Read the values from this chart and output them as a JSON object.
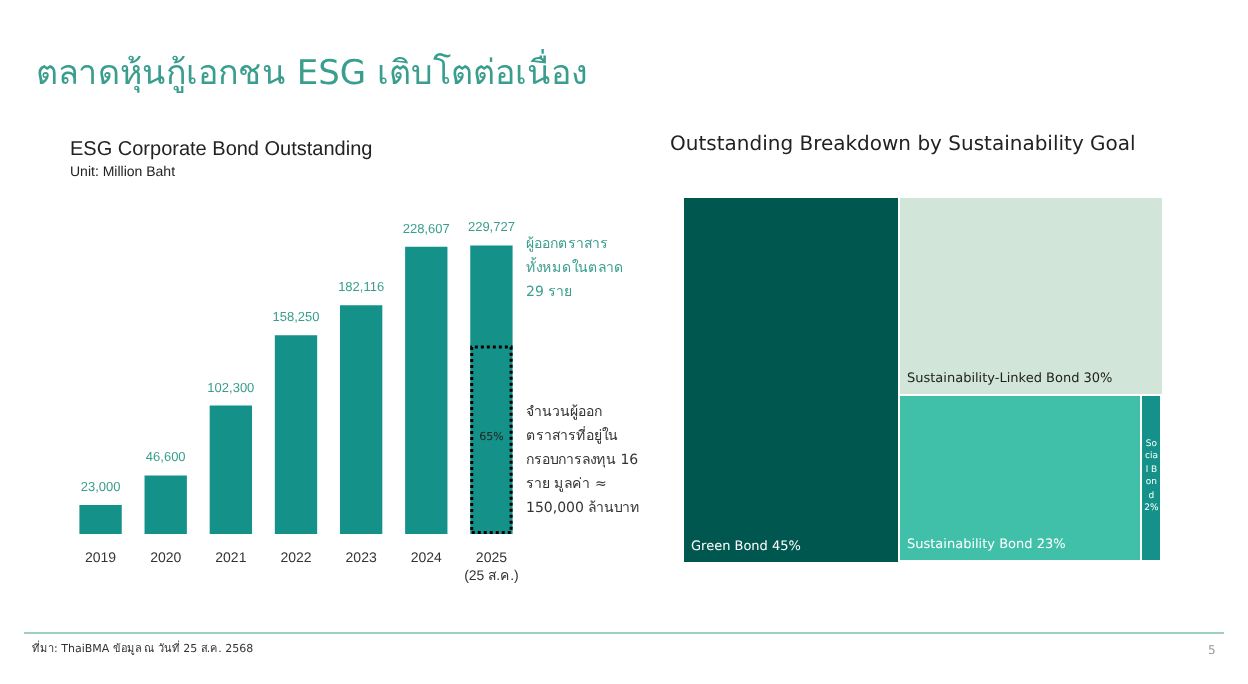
{
  "chart_data": [
    {
      "type": "bar",
      "title": "ESG Corporate Bond Outstanding",
      "subtitle": "Unit: Million Baht",
      "categories": [
        "2019",
        "2020",
        "2021",
        "2022",
        "2023",
        "2024",
        "2025\n(25 ส.ค.)"
      ],
      "series": [
        {
          "color": "#14928a",
          "values": [
            23000,
            46600,
            102300,
            158250,
            182116,
            228607,
            229727
          ],
          "value_labels": [
            "23,000",
            "46,600",
            "102,300",
            "158,250",
            "182,116",
            "228,607",
            "229,727"
          ]
        },
        {
          "color": "#14928a",
          "line_style": "dotted",
          "values": [
            null,
            null,
            null,
            null,
            null,
            null,
            150000
          ]
        }
      ],
      "tick_labels": "x",
      "annotations": [
        "ตลาดหุ้นกู้เอกชน ESG เติบโตต่อเนื่อง",
        "ผู้ออกตราสารทั้งหมดในตลาด 29 ราย",
        "จำนวนผู้ออกตราสารที่อยู่ในกรอบการลงทุน 16 ราย มูลค่า ≈ 150,000 ล้านบาท",
        "65%",
        "ที่มา: ThaiBMA ข้อมูล ณ วันที่ 25 ส.ค. 2568"
      ]
    },
    {
      "type": "other",
      "title": "Outstanding Breakdown by Sustainability Goal",
      "categories": [
        "Green Bond",
        "Sustainability-Linked Bond",
        "Sustainability Bond",
        "Social Bond"
      ],
      "values": [
        45,
        30,
        23,
        2
      ],
      "value_labels": [
        "45%",
        "30%",
        "23%",
        "2%"
      ],
      "colors": [
        "#00574f",
        "#d1e5d8",
        "#41c0a9",
        "#14928a"
      ],
      "annotations": [
        "5"
      ]
    }
  ]
}
